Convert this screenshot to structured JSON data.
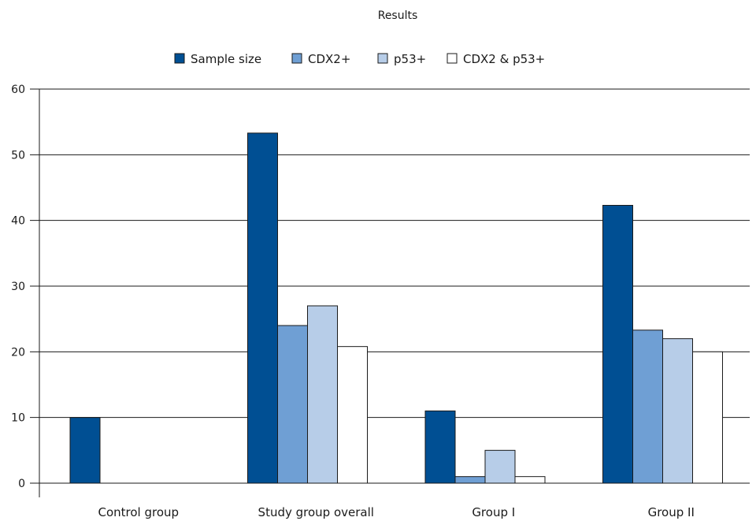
{
  "chart_data": {
    "type": "bar",
    "title": "Results",
    "xlabel": "",
    "ylabel": "",
    "categories": [
      "Control group",
      "Study group overall",
      "Group I",
      "Group II"
    ],
    "series": [
      {
        "name": "Sample size",
        "color": "#004f93",
        "values": [
          10,
          53.3,
          11,
          42.3
        ]
      },
      {
        "name": "CDX2+",
        "color": "#6f9fd4",
        "values": [
          0,
          24,
          1,
          23.3
        ]
      },
      {
        "name": "p53+",
        "color": "#b7cde8",
        "values": [
          0,
          27,
          5,
          22
        ]
      },
      {
        "name": "CDX2 & p53+",
        "color": "#ffffff",
        "values": [
          0,
          20.8,
          1,
          20
        ]
      }
    ],
    "ylim": [
      0,
      60
    ],
    "yticks": [
      0,
      10,
      20,
      30,
      40,
      50,
      60
    ],
    "grid": true,
    "legend_position": "top"
  }
}
